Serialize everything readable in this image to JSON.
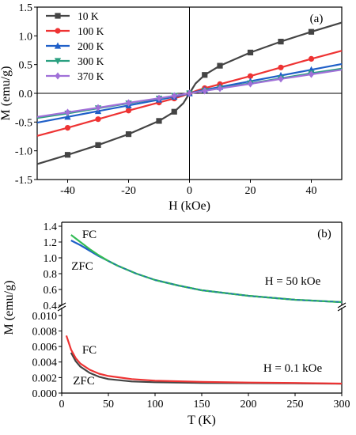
{
  "chart_data": [
    {
      "type": "line",
      "panel_label": "(a)",
      "xlabel": "H (kOe)",
      "ylabel": "M (emu/g)",
      "xlim": [
        -50,
        50
      ],
      "ylim": [
        -1.5,
        1.5
      ],
      "xticks": [
        -40,
        -20,
        0,
        20,
        40
      ],
      "xtick_labels": [
        "-40",
        "-20",
        "0",
        "20",
        "40"
      ],
      "yticks": [
        -1.5,
        -1.0,
        -0.5,
        0.0,
        0.5,
        1.0,
        1.5
      ],
      "ytick_labels": [
        "-1.5",
        "-1.0",
        "-0.5",
        "0.0",
        "0.5",
        "1.0",
        "1.5"
      ],
      "zero_lines": true,
      "legend_position": "top-left",
      "x": [
        -50,
        -40,
        -30,
        -20,
        -10,
        -5,
        -2,
        0,
        2,
        5,
        10,
        20,
        30,
        40,
        50
      ],
      "series": [
        {
          "name": "10 K",
          "color": "#444444",
          "marker": "square",
          "values": [
            -1.23,
            -1.07,
            -0.9,
            -0.71,
            -0.48,
            -0.32,
            -0.17,
            0,
            0.17,
            0.32,
            0.48,
            0.71,
            0.9,
            1.07,
            1.23
          ]
        },
        {
          "name": "100 K",
          "color": "#ee3333",
          "marker": "circle",
          "values": [
            -0.74,
            -0.6,
            -0.45,
            -0.3,
            -0.16,
            -0.09,
            -0.04,
            0,
            0.04,
            0.09,
            0.16,
            0.3,
            0.45,
            0.6,
            0.74
          ]
        },
        {
          "name": "200 K",
          "color": "#1f5fc8",
          "marker": "triangle",
          "values": [
            -0.51,
            -0.41,
            -0.31,
            -0.21,
            -0.11,
            -0.06,
            -0.025,
            0,
            0.025,
            0.06,
            0.11,
            0.21,
            0.31,
            0.41,
            0.51
          ]
        },
        {
          "name": "300 K",
          "color": "#2aa080",
          "marker": "triangle-down",
          "values": [
            -0.43,
            -0.35,
            -0.26,
            -0.175,
            -0.09,
            -0.045,
            -0.018,
            0,
            0.018,
            0.045,
            0.09,
            0.175,
            0.26,
            0.35,
            0.43
          ]
        },
        {
          "name": "370 K",
          "color": "#a070d8",
          "marker": "diamond",
          "values": [
            -0.41,
            -0.33,
            -0.25,
            -0.165,
            -0.085,
            -0.042,
            -0.017,
            0,
            0.017,
            0.042,
            0.085,
            0.165,
            0.25,
            0.33,
            0.41
          ]
        }
      ]
    },
    {
      "type": "line",
      "panel_label": "(b)",
      "xlabel": "T (K)",
      "ylabel": "M (emu/g)",
      "xlim": [
        0,
        300
      ],
      "xticks": [
        0,
        50,
        100,
        150,
        200,
        250,
        300
      ],
      "xtick_labels": [
        "0",
        "50",
        "100",
        "150",
        "200",
        "250",
        "300"
      ],
      "broken_y_axis": true,
      "upper": {
        "annotation": "H = 50 kOe",
        "ylim": [
          0.4,
          1.45
        ],
        "yticks": [
          0.4,
          0.6,
          0.8,
          1.0,
          1.2,
          1.4
        ],
        "ytick_labels": [
          "0.4",
          "0.6",
          "0.8",
          "1.0",
          "1.2",
          "1.4"
        ],
        "x": [
          10,
          20,
          30,
          40,
          50,
          60,
          80,
          100,
          125,
          150,
          200,
          250,
          300
        ],
        "series": [
          {
            "name": "FC",
            "color": "#33bb55",
            "values": [
              1.29,
              1.2,
              1.11,
              1.03,
              0.96,
              0.9,
              0.8,
              0.72,
              0.65,
              0.59,
              0.52,
              0.47,
              0.44
            ]
          },
          {
            "name": "ZFC",
            "color": "#1f5fc8",
            "values": [
              1.22,
              1.16,
              1.09,
              1.02,
              0.96,
              0.9,
              0.8,
              0.72,
              0.65,
              0.59,
              0.52,
              0.47,
              0.44
            ]
          }
        ]
      },
      "lower": {
        "annotation": "H = 0.1 kOe",
        "ylim": [
          0.0,
          0.011
        ],
        "yticks": [
          0.0,
          0.002,
          0.004,
          0.006,
          0.008,
          0.01
        ],
        "ytick_labels": [
          "0.000",
          "0.002",
          "0.004",
          "0.006",
          "0.008",
          "0.010"
        ],
        "series": [
          {
            "name": "FC",
            "color": "#ee3333",
            "x": [
              5,
              10,
              15,
              20,
              30,
              40,
              50,
              75,
              100,
              150,
              200,
              250,
              300
            ],
            "values": [
              0.0074,
              0.0056,
              0.0045,
              0.0038,
              0.003,
              0.0025,
              0.0022,
              0.0018,
              0.0016,
              0.00145,
              0.00135,
              0.0013,
              0.00122
            ]
          },
          {
            "name": "ZFC",
            "color": "#444444",
            "x": [
              10,
              15,
              20,
              30,
              40,
              50,
              75,
              100,
              150,
              200,
              250,
              300
            ],
            "values": [
              0.0052,
              0.0041,
              0.0034,
              0.0026,
              0.0021,
              0.0018,
              0.0015,
              0.0014,
              0.0013,
              0.00128,
              0.00125,
              0.0012
            ]
          }
        ]
      }
    }
  ]
}
